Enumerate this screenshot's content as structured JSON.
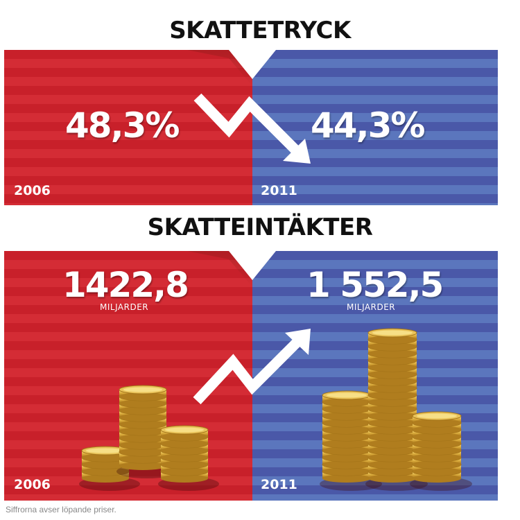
{
  "sections": {
    "tax_pressure": {
      "title": "SKATTETRYCK",
      "left": {
        "value": "48,3%",
        "year": "2006"
      },
      "right": {
        "value": "44,3%",
        "year": "2011"
      }
    },
    "tax_revenue": {
      "title": "SKATTEINTÄKTER",
      "left": {
        "value": "1422,8",
        "unit": "MILJARDER",
        "year": "2006"
      },
      "right": {
        "value": "1 552,5",
        "unit": "MILJARDER",
        "year": "2011"
      }
    }
  },
  "footnote": "Siffrorna avser löpande priser.",
  "colors": {
    "red": "#c8202a",
    "blue": "#4a58a8",
    "coin": "#d9a93a"
  },
  "icons": [
    "down-arrow-icon",
    "up-arrow-icon",
    "coin-stack-icon"
  ]
}
